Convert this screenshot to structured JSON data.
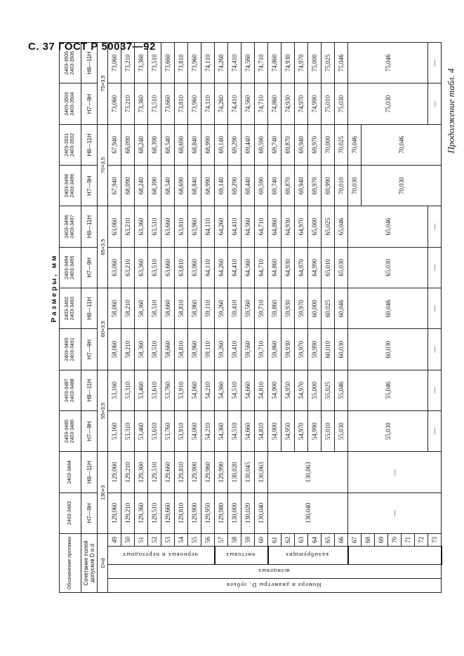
{
  "page_header": "С. 37 ГОСТ Р 50037—92",
  "continuation": "Продолжение табл. 4",
  "dimensions_caption": "Размеры, мм",
  "labels": {
    "designation": "Обозначение протяжки",
    "tolerance": "Сочетание полей допусков D и d",
    "size": "D×d",
    "teeth": "Номера и диаметры D₁ зубьев",
    "splined": "шлицевых"
  },
  "groups": [
    {
      "label": "черновых и переходных",
      "rows": 8
    },
    {
      "label": "чистовых",
      "rows": 4
    },
    {
      "label": "калибрующих",
      "rows": 6
    },
    {
      "label": "",
      "rows": 7
    }
  ],
  "tooth_numbers": [
    "49",
    "50",
    "51",
    "52",
    "53",
    "54",
    "55",
    "56",
    "57",
    "58",
    "59",
    "60",
    "61",
    "62",
    "63",
    "64",
    "65",
    "66",
    "67",
    "68",
    "69",
    "70",
    "71",
    "72",
    "73"
  ],
  "sizes": [
    "130×3",
    "55×3,5",
    "60×3,5",
    "65×3,5",
    "70×3,5",
    "75×3,5"
  ],
  "columns": [
    {
      "code": [
        "2403-3483"
      ],
      "tolerance": "H7—9H",
      "cells": [
        "129,060",
        "129,210",
        "129,360",
        "129,510",
        "129,660",
        "129,810",
        "129,900",
        "129,950",
        "129,980",
        "130,000",
        "130,020",
        "130,040",
        {
          "value": "130,040",
          "rows": 6
        },
        {
          "value": "—",
          "rows": 7
        }
      ]
    },
    {
      "code": [
        "2403-3484"
      ],
      "tolerance": "H8—11H",
      "cells": [
        "129,060",
        "129,210",
        "129,360",
        "129,510",
        "129,660",
        "129,810",
        "129,900",
        "129,960",
        "129,990",
        "130,020",
        "130,045",
        "130,063",
        {
          "value": "130,063",
          "rows": 6
        },
        {
          "value": "—",
          "rows": 7
        }
      ]
    },
    {
      "code": [
        "2403-3485",
        "2403-3486"
      ],
      "tolerance": "H7—9H",
      "cells": [
        "53,160",
        "53,310",
        "53,460",
        "53,610",
        "53,760",
        "53,910",
        "54,060",
        "54,210",
        "54,360",
        "54,510",
        "54,660",
        "54,810",
        "54,900",
        "54,950",
        "54,970",
        "54,990",
        "55,010",
        "55,030",
        {
          "value": "55,030",
          "rows": 6
        },
        {
          "value": "—",
          "rows": 1
        }
      ]
    },
    {
      "code": [
        "2403-3487",
        "2403-3488"
      ],
      "tolerance": "H8—11H",
      "cells": [
        "53,160",
        "53,310",
        "53,460",
        "53,610",
        "53,760",
        "53,910",
        "54,060",
        "54,210",
        "54,360",
        "54,510",
        "54,660",
        "54,810",
        "54,900",
        "54,950",
        "54,970",
        "55,000",
        "55,025",
        "55,046",
        {
          "value": "55,046",
          "rows": 6
        },
        {
          "value": "—",
          "rows": 1
        }
      ]
    },
    {
      "code": [
        "2403-3489",
        "2403-3491"
      ],
      "tolerance": "H7—9H",
      "cells": [
        "58,060",
        "58,210",
        "58,360",
        "58,510",
        "58,660",
        "58,810",
        "58,960",
        "59,110",
        "59,260",
        "59,410",
        "59,560",
        "59,710",
        "59,860",
        "59,930",
        "59,970",
        "59,990",
        "60,010",
        "60,030",
        {
          "value": "60,030",
          "rows": 6
        },
        {
          "value": "—",
          "rows": 1
        }
      ]
    },
    {
      "code": [
        "2403-3492",
        "2403-3493"
      ],
      "tolerance": "H8—11H",
      "cells": [
        "58,060",
        "58,210",
        "58,360",
        "58,510",
        "58,660",
        "58,810",
        "58,960",
        "59,110",
        "59,260",
        "59,410",
        "59,560",
        "59,710",
        "59,860",
        "59,930",
        "59,970",
        "60,000",
        "60,025",
        "60,046",
        {
          "value": "60,046",
          "rows": 6
        },
        {
          "value": "—",
          "rows": 1
        }
      ]
    },
    {
      "code": [
        "2403-3494",
        "2403-3495"
      ],
      "tolerance": "H7—9H",
      "cells": [
        "63,060",
        "63,210",
        "63,360",
        "63,510",
        "63,660",
        "63,810",
        "63,960",
        "64,110",
        "64,260",
        "64,410",
        "64,560",
        "64,710",
        "64,860",
        "64,930",
        "64,970",
        "64,990",
        "65,010",
        "65,030",
        {
          "value": "65,030",
          "rows": 6
        },
        {
          "value": "—",
          "rows": 1
        }
      ]
    },
    {
      "code": [
        "2403-3496",
        "2403-3497"
      ],
      "tolerance": "H8—11H",
      "cells": [
        "63,060",
        "63,210",
        "63,360",
        "63,510",
        "63,660",
        "63,810",
        "63,960",
        "64,110",
        "64,260",
        "64,410",
        "64,560",
        "64,710",
        "64,860",
        "64,930",
        "64,970",
        "65,000",
        "65,025",
        "65,046",
        {
          "value": "65,046",
          "rows": 6
        },
        {
          "value": "—",
          "rows": 1
        }
      ]
    },
    {
      "code": [
        "2403-3498",
        "2403-3499"
      ],
      "tolerance": "H7—9H",
      "cells": [
        "67,940",
        "68,090",
        "68,240",
        "68,390",
        "68,540",
        "68,690",
        "68,840",
        "68,990",
        "69,140",
        "69,290",
        "69,440",
        "69,590",
        "69,740",
        "69,870",
        "69,940",
        "69,970",
        "69,990",
        "70,010",
        "70,030",
        {
          "value": "70,030",
          "rows": 6
        }
      ]
    },
    {
      "code": [
        "2403-3501",
        "2403-3502"
      ],
      "tolerance": "H8—11H",
      "cells": [
        "67,940",
        "68,090",
        "68,240",
        "68,390",
        "68,540",
        "68,690",
        "68,840",
        "68,990",
        "69,140",
        "69,290",
        "69,440",
        "69,590",
        "69,740",
        "69,870",
        "69,940",
        "69,970",
        "70,000",
        "70,025",
        "70,046",
        {
          "value": "70,046",
          "rows": 6
        }
      ]
    },
    {
      "code": [
        "2403-3503",
        "2403-3504"
      ],
      "tolerance": "H7—9H",
      "cells": [
        "73,060",
        "73,210",
        "73,360",
        "73,510",
        "73,660",
        "73,810",
        "73,960",
        "74,110",
        "74,260",
        "74,410",
        "74,560",
        "74,710",
        "74,860",
        "74,930",
        "74,970",
        "74,990",
        "75,010",
        "75,030",
        {
          "value": "75,030",
          "rows": 6
        },
        {
          "value": "—",
          "rows": 1
        }
      ]
    },
    {
      "code": [
        "2403-3505",
        "2403-3506"
      ],
      "tolerance": "H8—11H",
      "cells": [
        "73,060",
        "73,210",
        "73,360",
        "73,510",
        "73,660",
        "73,810",
        "73,960",
        "74,110",
        "74,260",
        "74,410",
        "74,560",
        "74,710",
        "74,860",
        "74,930",
        "74,970",
        "75,000",
        "75,025",
        "75,046",
        {
          "value": "75,046",
          "rows": 6
        },
        {
          "value": "—",
          "rows": 1
        }
      ]
    }
  ]
}
